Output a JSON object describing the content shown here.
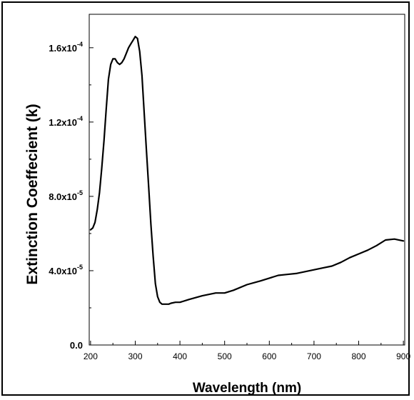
{
  "chart_data": {
    "type": "line",
    "title": "",
    "xlabel": "Wavelength (nm)",
    "ylabel": "Extinction Coeffecient (k)",
    "xlim": [
      197,
      903
    ],
    "ylim": [
      0,
      0.000178
    ],
    "grid": false,
    "legend": "none",
    "x_ticks": [
      {
        "value": 200,
        "label": "200"
      },
      {
        "value": 300,
        "label": "300"
      },
      {
        "value": 400,
        "label": "400"
      },
      {
        "value": 500,
        "label": "500"
      },
      {
        "value": 600,
        "label": "600"
      },
      {
        "value": 700,
        "label": "700"
      },
      {
        "value": 800,
        "label": "800"
      },
      {
        "value": 900,
        "label": "900"
      }
    ],
    "y_ticks": [
      {
        "value": 0,
        "mantissa": "0.0",
        "exp": ""
      },
      {
        "value": 4e-05,
        "mantissa": "4.0x10",
        "exp": "-5"
      },
      {
        "value": 8e-05,
        "mantissa": "8.0x10",
        "exp": "-5"
      },
      {
        "value": 0.00012,
        "mantissa": "1.2x10",
        "exp": "-4"
      },
      {
        "value": 0.00016,
        "mantissa": "1.6x10",
        "exp": "-4"
      }
    ],
    "series": [
      {
        "color": "#000000",
        "x": [
          200,
          205,
          210,
          215,
          220,
          225,
          230,
          235,
          240,
          245,
          250,
          255,
          260,
          265,
          270,
          275,
          280,
          285,
          290,
          295,
          300,
          305,
          310,
          315,
          320,
          325,
          330,
          335,
          340,
          345,
          350,
          355,
          360,
          365,
          370,
          375,
          380,
          390,
          400,
          420,
          450,
          480,
          500,
          520,
          550,
          580,
          600,
          620,
          640,
          660,
          680,
          700,
          720,
          740,
          760,
          780,
          800,
          820,
          840,
          860,
          880,
          900
        ],
        "y": [
          6.2e-05,
          6.3e-05,
          6.6e-05,
          7.3e-05,
          8.2e-05,
          9.5e-05,
          0.00011,
          0.000127,
          0.000143,
          0.000151,
          0.000154,
          0.000154,
          0.000152,
          0.000151,
          0.000152,
          0.000154,
          0.000157,
          0.00016,
          0.000162,
          0.000164,
          0.000166,
          0.000165,
          0.000158,
          0.000145,
          0.000125,
          0.000105,
          8.5e-05,
          6.5e-05,
          4.8e-05,
          3.3e-05,
          2.6e-05,
          2.3e-05,
          2.2e-05,
          2.2e-05,
          2.2e-05,
          2.2e-05,
          2.25e-05,
          2.3e-05,
          2.3e-05,
          2.45e-05,
          2.65e-05,
          2.8e-05,
          2.8e-05,
          2.95e-05,
          3.25e-05,
          3.45e-05,
          3.6e-05,
          3.75e-05,
          3.8e-05,
          3.85e-05,
          3.95e-05,
          4.05e-05,
          4.15e-05,
          4.25e-05,
          4.45e-05,
          4.7e-05,
          4.9e-05,
          5.1e-05,
          5.35e-05,
          5.65e-05,
          5.7e-05,
          5.6e-05
        ]
      }
    ]
  }
}
